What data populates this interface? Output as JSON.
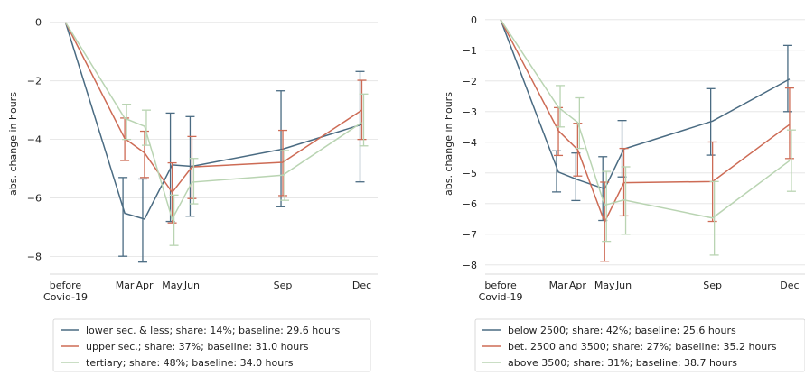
{
  "chart_data": [
    {
      "type": "line",
      "title": "",
      "xlabel": "",
      "ylabel": "abs. change in hours",
      "x": [
        0,
        1.5,
        2,
        2.7,
        3.2,
        5.5,
        7.5
      ],
      "xticks": [
        {
          "x": 0,
          "lines": [
            "before",
            "Covid-19"
          ]
        },
        {
          "x": 1.5,
          "lines": [
            "Mar"
          ]
        },
        {
          "x": 2,
          "lines": [
            "Apr"
          ]
        },
        {
          "x": 2.7,
          "lines": [
            "May"
          ]
        },
        {
          "x": 3.2,
          "lines": [
            "Jun"
          ]
        },
        {
          "x": 5.5,
          "lines": [
            "Sep"
          ]
        },
        {
          "x": 7.5,
          "lines": [
            "Dec"
          ]
        }
      ],
      "xlim": [
        -0.4,
        7.9
      ],
      "ylim": [
        -8.6,
        0.3
      ],
      "yticks": [
        0,
        -2,
        -4,
        -6,
        -8
      ],
      "ytick_labels": [
        "0",
        "−2",
        "−4",
        "−6",
        "−8"
      ],
      "grid": "horizontal",
      "legend_position": "bottom",
      "series": [
        {
          "name": "lower sec. & less; share: 14%; baseline: 29.6 hours",
          "color": "#4a6b82",
          "values": [
            0,
            -6.52,
            -6.72,
            -4.87,
            -4.92,
            -4.33,
            -3.49
          ],
          "err_low": [
            0,
            -7.99,
            -8.19,
            -6.8,
            -6.62,
            -6.3,
            -5.45
          ],
          "err_high": [
            0,
            -5.3,
            -5.35,
            -3.1,
            -3.22,
            -2.34,
            -1.68
          ]
        },
        {
          "name": "upper sec.; share: 37%; baseline: 31.0 hours",
          "color": "#cd6b55",
          "values": [
            0,
            -3.97,
            -4.46,
            -5.81,
            -4.94,
            -4.78,
            -3.0
          ],
          "err_low": [
            0,
            -4.72,
            -5.3,
            -6.85,
            -6.02,
            -5.92,
            -4.0
          ],
          "err_high": [
            0,
            -3.27,
            -3.72,
            -4.8,
            -3.9,
            -3.69,
            -1.98
          ]
        },
        {
          "name": "tertiary; share: 48%; baseline: 34.0 hours",
          "color": "#b9d4b2",
          "values": [
            0,
            -3.28,
            -3.55,
            -6.72,
            -5.46,
            -5.22,
            -3.42
          ],
          "err_low": [
            0,
            -4.0,
            -4.2,
            -7.62,
            -6.2,
            -6.08,
            -4.22
          ],
          "err_high": [
            0,
            -2.8,
            -3.0,
            -5.9,
            -4.65,
            -4.38,
            -2.45
          ]
        }
      ]
    },
    {
      "type": "line",
      "title": "",
      "xlabel": "",
      "ylabel": "abs. change in hours",
      "x": [
        0,
        1.5,
        2,
        2.7,
        3.2,
        5.5,
        7.5
      ],
      "xticks": [
        {
          "x": 0,
          "lines": [
            "before",
            "Covid-19"
          ]
        },
        {
          "x": 1.5,
          "lines": [
            "Mar"
          ]
        },
        {
          "x": 2,
          "lines": [
            "Apr"
          ]
        },
        {
          "x": 2.7,
          "lines": [
            "May"
          ]
        },
        {
          "x": 3.2,
          "lines": [
            "Jun"
          ]
        },
        {
          "x": 5.5,
          "lines": [
            "Sep"
          ]
        },
        {
          "x": 7.5,
          "lines": [
            "Dec"
          ]
        }
      ],
      "xlim": [
        -0.4,
        7.9
      ],
      "ylim": [
        -8.3,
        0.2
      ],
      "yticks": [
        0,
        -1,
        -2,
        -3,
        -4,
        -5,
        -6,
        -7,
        -8
      ],
      "ytick_labels": [
        "0",
        "−1",
        "−2",
        "−3",
        "−4",
        "−5",
        "−6",
        "−7",
        "−8"
      ],
      "grid": "horizontal",
      "legend_position": "bottom",
      "series": [
        {
          "name": "below 2500; share: 42%; baseline: 25.6 hours",
          "color": "#4a6b82",
          "values": [
            0,
            -4.97,
            -5.22,
            -5.52,
            -4.22,
            -3.31,
            -1.94
          ],
          "err_low": [
            0,
            -5.62,
            -5.9,
            -6.55,
            -5.13,
            -4.42,
            -3.0
          ],
          "err_high": [
            0,
            -4.28,
            -4.35,
            -4.47,
            -3.29,
            -2.25,
            -0.84
          ]
        },
        {
          "name": "bet. 2500 and 3500; share: 27%; baseline: 35.2 hours",
          "color": "#cd6b55",
          "values": [
            0,
            -3.62,
            -4.24,
            -6.6,
            -5.32,
            -5.28,
            -3.42
          ],
          "err_low": [
            0,
            -4.43,
            -5.1,
            -7.88,
            -6.4,
            -6.58,
            -4.53
          ],
          "err_high": [
            0,
            -2.87,
            -3.38,
            -5.3,
            -4.2,
            -3.99,
            -2.23
          ]
        },
        {
          "name": "above 3500; share: 31%; baseline: 38.7 hours",
          "color": "#b9d4b2",
          "values": [
            0,
            -2.86,
            -3.35,
            -6.05,
            -5.88,
            -6.47,
            -4.6
          ],
          "err_low": [
            0,
            -3.5,
            -4.2,
            -7.23,
            -7.0,
            -7.68,
            -5.6
          ],
          "err_high": [
            0,
            -2.15,
            -2.55,
            -4.95,
            -4.8,
            -5.28,
            -3.6
          ]
        }
      ]
    }
  ]
}
